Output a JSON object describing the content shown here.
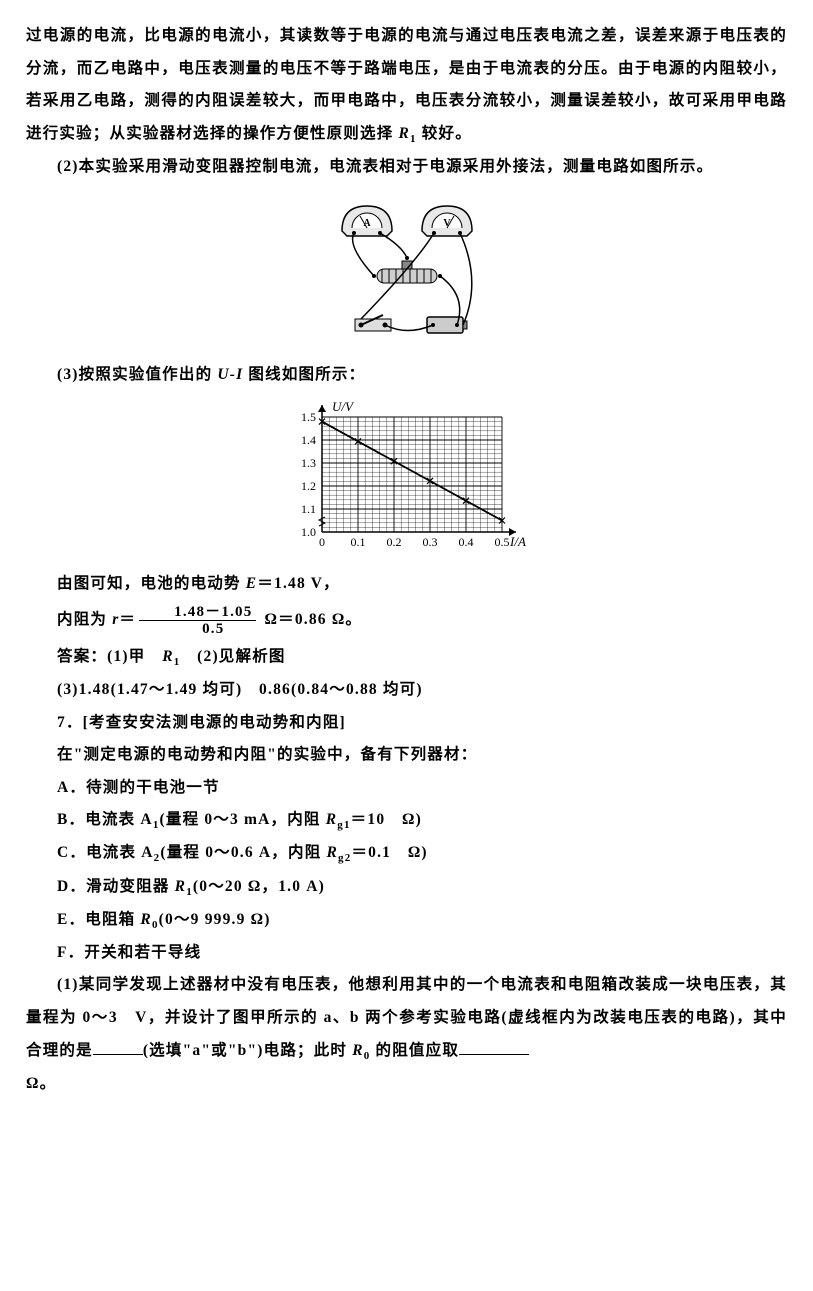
{
  "p1": "过电源的电流，比电源的电流小，其读数等于电源的电流与通过电压表电流之差，误差来源于电压表的分流，而乙电路中，电压表测量的电压不等于路端电压，是由于电流表的分压。由于电源的内阻较小，若采用乙电路，测得的内阻误差较大，而甲电路中，电压表分流较小，测量误差较小，故可采用甲电路进行实验；从实验器材选择的操作方便性原则选择 ",
  "p1_r": "R",
  "p1_rsub": "1",
  "p1_tail": " 较好。",
  "p2": "(2)本实验采用滑动变阻器控制电流，电流表相对于电源采用外接法，测量电路如图所示。",
  "p3_pre": "(3)按照实验值作出的 ",
  "p3_ui": "U-I",
  "p3_post": " 图线如图所示：",
  "graph": {
    "ylabel": "U/V",
    "xlabel": "I/A",
    "yticks": [
      "1.5",
      "1.4",
      "1.3",
      "1.2",
      "1.1",
      "1.0"
    ],
    "xticks": [
      "0",
      "0.1",
      "0.2",
      "0.3",
      "0.4",
      "0.5"
    ],
    "ymin": 1.0,
    "ymax": 1.5,
    "xmin": 0,
    "xmax": 0.5,
    "line_x1": 0,
    "line_y1": 1.48,
    "line_x2": 0.5,
    "line_y2": 1.05,
    "grid_color": "#000",
    "bg": "#ffffff"
  },
  "p4_pre": "由图可知，电池的电动势 ",
  "p4_e": "E",
  "p4_eq": "＝1.48 V，",
  "p5_pre": "内阻为 ",
  "p5_r": "r",
  "p5_eq": "＝",
  "frac_num": "1.48－1.05",
  "frac_den": "0.5",
  "p5_post": " Ω＝0.86 Ω。",
  "ans_label": "答案：",
  "ans1": "(1)甲　",
  "ans1_r": "R",
  "ans1_rsub": "1",
  "ans2": "　(2)见解析图",
  "ans3": "(3)1.48(1.47～1.49 均可)　0.86(0.84～0.88 均可)",
  "q7_title": "7．[考查安安法测电源的电动势和内阻]",
  "q7_intro": "在\"测定电源的电动势和内阻\"的实验中，备有下列器材：",
  "itemA": "A．待测的干电池一节",
  "itemB_pre": "B．电流表 A",
  "itemB_sub": "1",
  "itemB_mid": "(量程 0～3 mA，内阻 ",
  "itemB_r": "R",
  "itemB_rsub": "g1",
  "itemB_post": "＝10　Ω)",
  "itemC_pre": "C．电流表 A",
  "itemC_sub": "2",
  "itemC_mid": "(量程 0～0.6 A，内阻 ",
  "itemC_r": "R",
  "itemC_rsub": "g2",
  "itemC_post": "＝0.1　Ω)",
  "itemD_pre": "D．滑动变阻器 ",
  "itemD_r": "R",
  "itemD_rsub": "1",
  "itemD_post": "(0～20 Ω，1.0 A)",
  "itemE_pre": "E．电阻箱 ",
  "itemE_r": "R",
  "itemE_rsub": "0",
  "itemE_post": "(0～9 999.9 Ω)",
  "itemF": "F．开关和若干导线",
  "q1_pre": "(1)某同学发现上述器材中没有电压表，他想利用其中的一个电流表和电阻箱改装成一块电压表，其量程为 0～3　V，并设计了图甲所示的 a、b 两个参考实验电路(虚线框内为改装电压表的电路)，其中合理的是",
  "q1_mid": "(选填\"a\"或\"b\")电路；此时 ",
  "q1_r": "R",
  "q1_rsub": "0",
  "q1_post": " 的阻值应取",
  "q1_unit": "Ω。"
}
